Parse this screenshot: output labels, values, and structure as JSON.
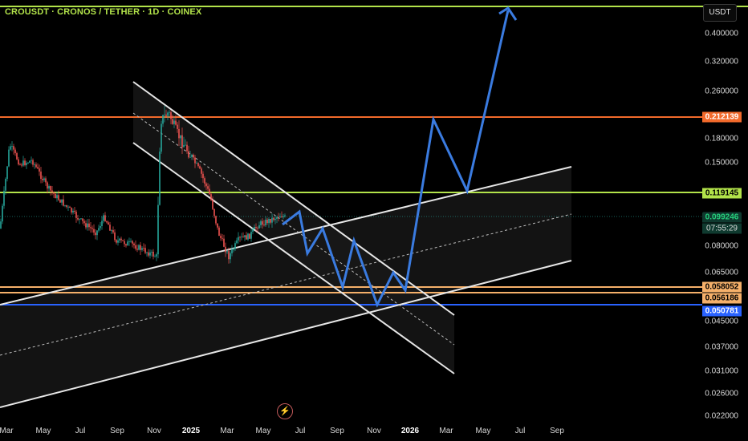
{
  "header": {
    "title": "CROUSDT · CRONOS / TETHER · 1D · COINEX",
    "currency_button": "USDT"
  },
  "price_axis": {
    "labels": [
      "0.400000",
      "0.320000",
      "0.260000",
      "0.180000",
      "0.150000",
      "0.080000",
      "0.065000",
      "0.045000",
      "0.037000",
      "0.031000",
      "0.026000",
      "0.022000"
    ],
    "tags": {
      "resistance_orange": "0.212139",
      "resistance_green": "0.119145",
      "last_price": "0.099246",
      "countdown": "07:55:29",
      "support_orange_1": "0.058052",
      "support_orange_2": "0.056186",
      "support_blue": "0.050781"
    }
  },
  "time_axis": {
    "labels": [
      "Mar",
      "May",
      "Jul",
      "Sep",
      "Nov",
      "2025",
      "Mar",
      "May",
      "Jul",
      "Sep",
      "Nov",
      "2026",
      "Mar",
      "May",
      "Jul",
      "Sep"
    ]
  },
  "colors": {
    "background": "#000000",
    "green_level": "#b2e34a",
    "orange_level": "#f26a2b",
    "peach_level": "#f5b06a",
    "blue_level": "#2962ff",
    "projection_path": "#3a7be0",
    "candle_up": "#26a69a",
    "candle_down": "#ef5350",
    "channel_line": "#e6e6e6"
  },
  "icons": {
    "replay": "lightning-icon"
  }
}
